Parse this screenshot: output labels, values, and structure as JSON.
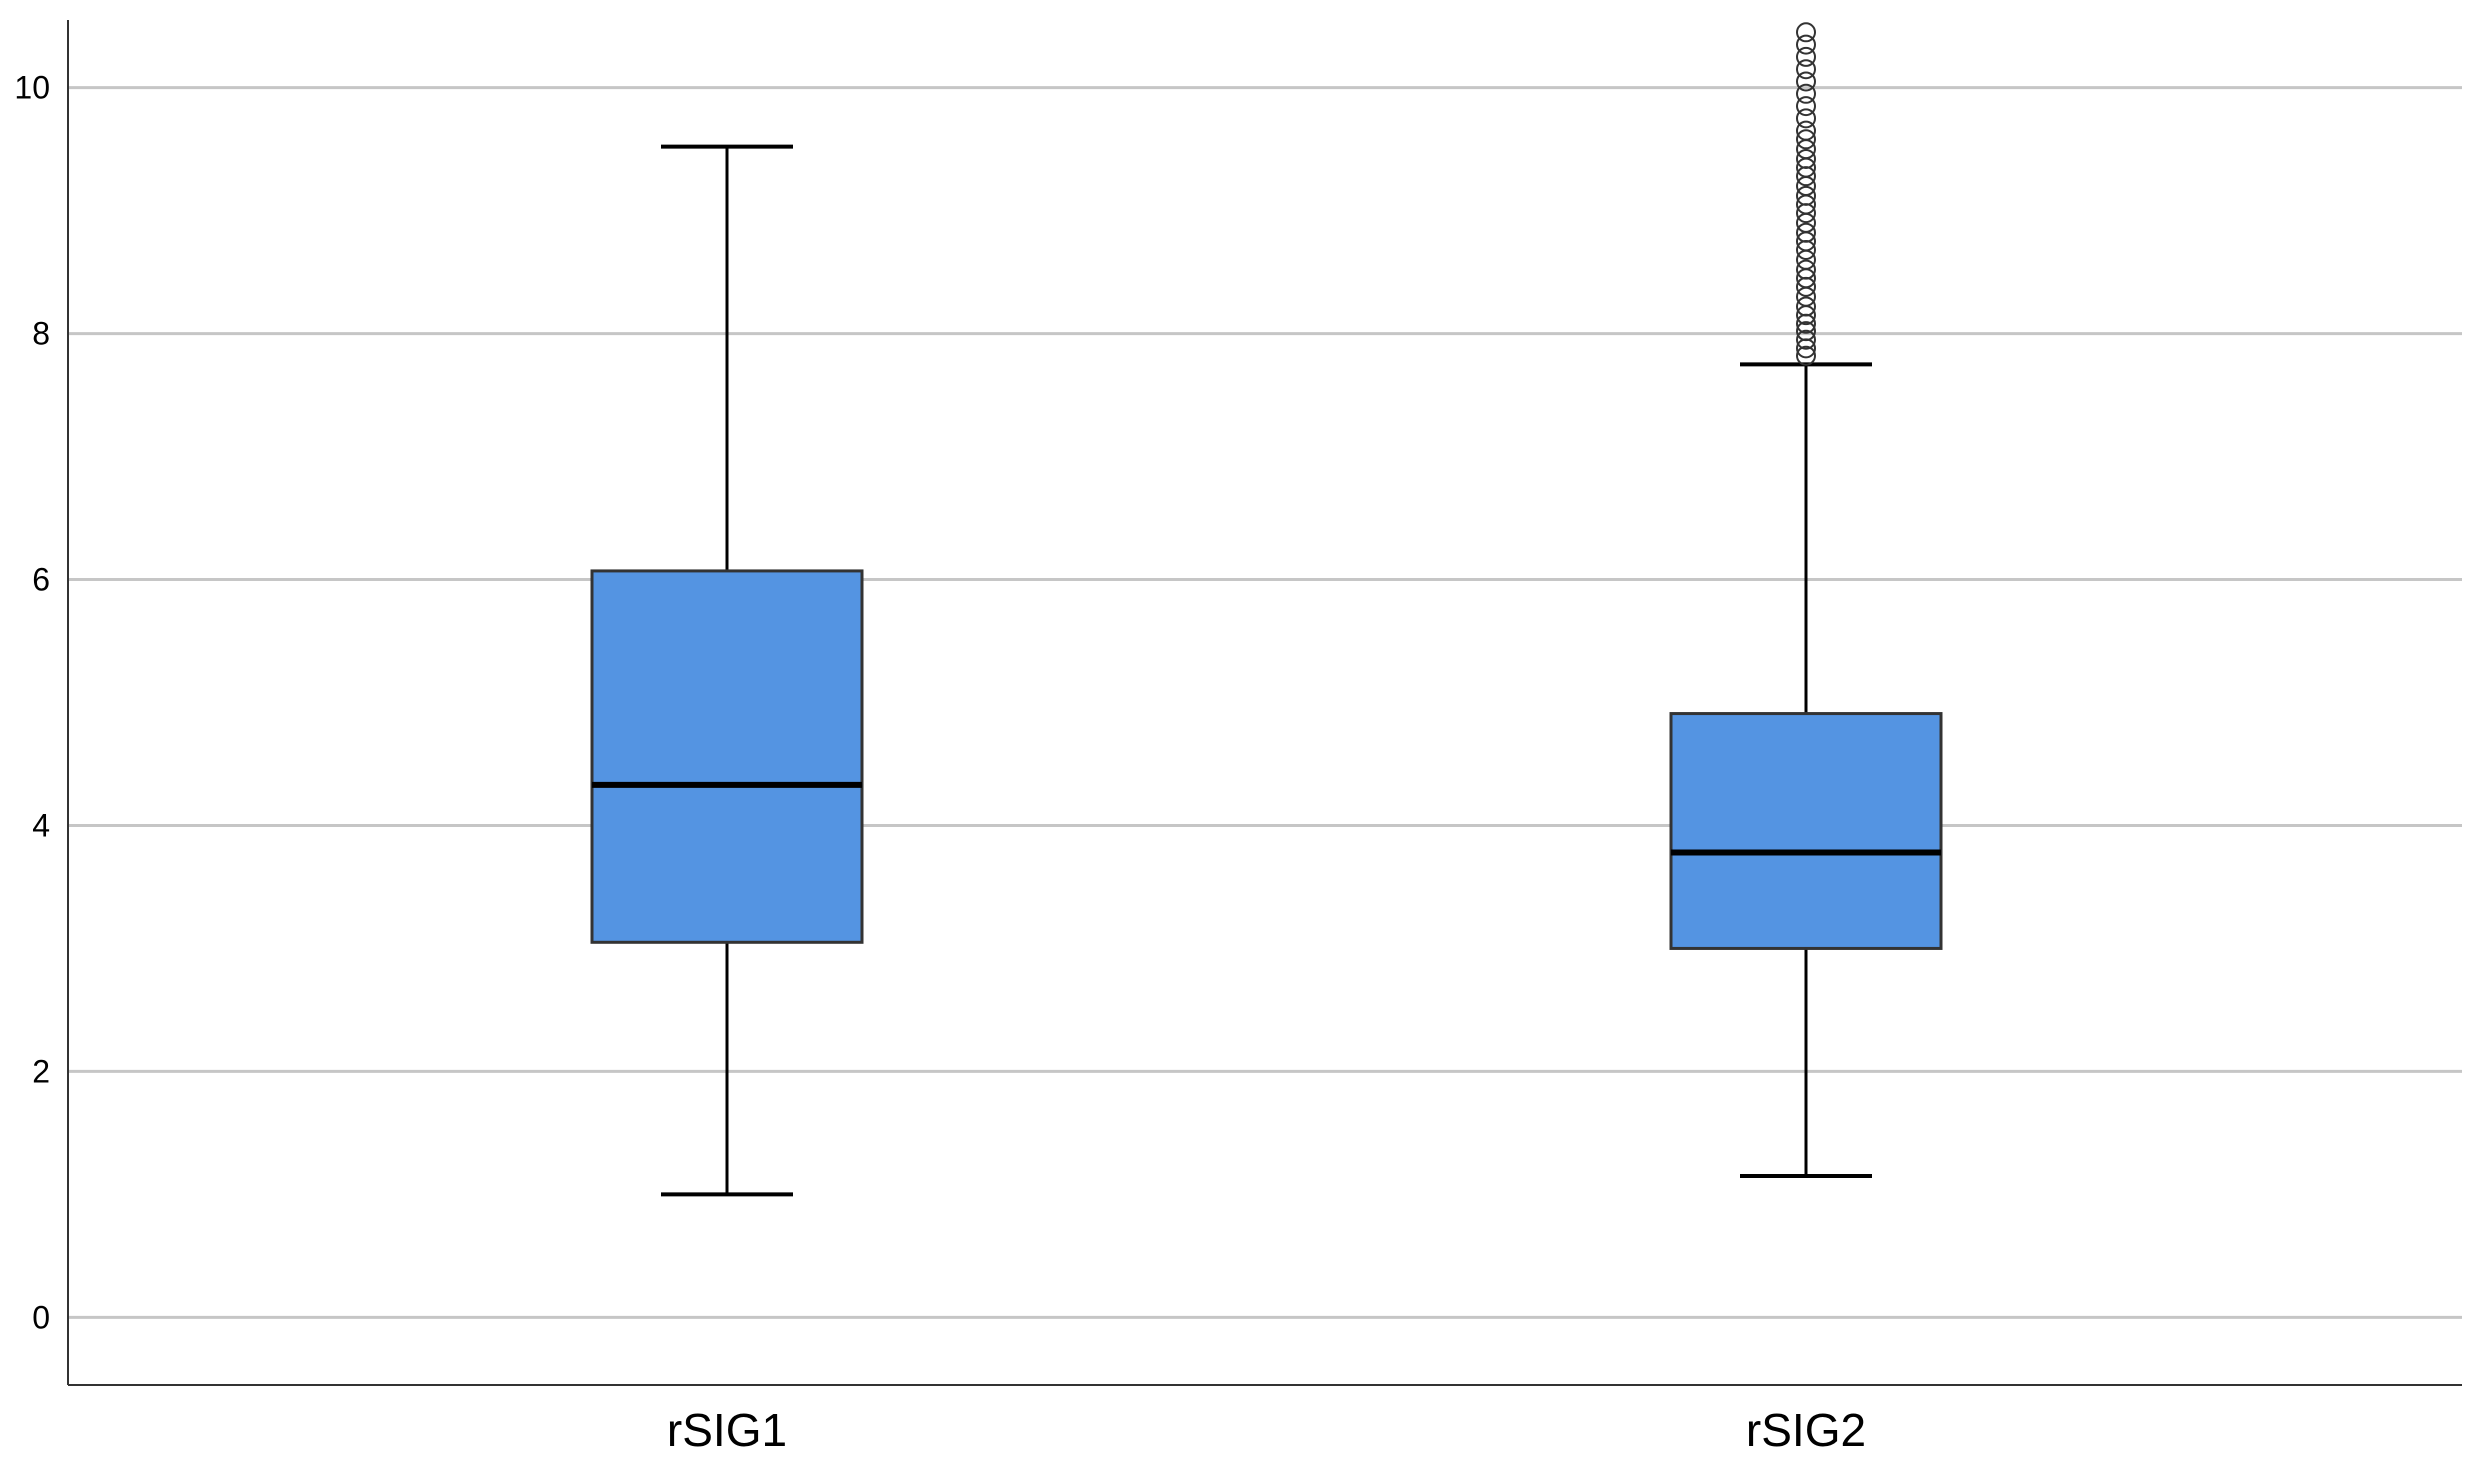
{
  "chart_data": {
    "type": "box",
    "categories": [
      "rSIG1",
      "rSIG2"
    ],
    "yticks": [
      "0",
      "2",
      "4",
      "6",
      "8",
      "10"
    ],
    "ylim": [
      -0.55,
      10.55
    ],
    "grid": true,
    "colors": {
      "box_fill": "#5494E2",
      "gridline": "#C6C6C6",
      "axis": "#333333"
    },
    "boxes": [
      {
        "name": "rSIG1",
        "min": 1.0,
        "q1": 3.05,
        "median": 4.33,
        "q3": 6.07,
        "max": 9.52,
        "outliers": []
      },
      {
        "name": "rSIG2",
        "min": 1.15,
        "q1": 3.0,
        "median": 3.78,
        "q3": 4.91,
        "max": 7.75,
        "outliers": [
          7.82,
          7.88,
          7.95,
          8.02,
          8.08,
          8.15,
          8.22,
          8.3,
          8.38,
          8.45,
          8.52,
          8.6,
          8.68,
          8.75,
          8.82,
          8.9,
          8.98,
          9.05,
          9.12,
          9.2,
          9.28,
          9.35,
          9.42,
          9.5,
          9.58,
          9.65,
          9.75,
          9.85,
          9.95,
          10.05,
          10.15,
          10.25,
          10.35,
          10.45
        ]
      }
    ]
  }
}
